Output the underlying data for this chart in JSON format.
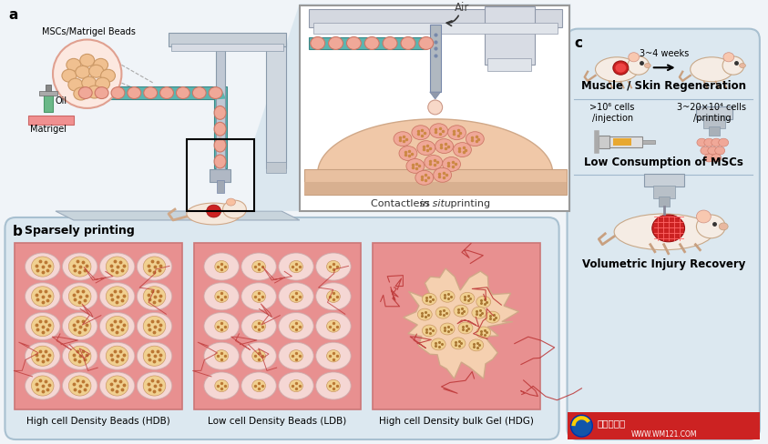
{
  "bg_color": "#f0f4f8",
  "panel_bg_blue": "#dce8f0",
  "panel_border": "#a8c0d0",
  "teal": "#5ab5b0",
  "bead_fill": "#f0a898",
  "bead_edge": "#cc7766",
  "bead_inner": "#f0d090",
  "pink_bg": "#e88888",
  "dark_red": "#cc3333",
  "gray_frame": "#c8d0d8",
  "gray_mid": "#a0a8b0",
  "gray_light": "#d8dce4",
  "white": "#ffffff",
  "skin_color": "#f0c8a8",
  "skin_edge": "#d8a888",
  "mouse_body": "#f0e0d0",
  "mouse_edge": "#c8a888",
  "mouse_ear": "#f8c8b0",
  "label_a": "a",
  "label_b": "b",
  "label_c": "c",
  "text_MSCs": "MSCs/Matrigel Beads",
  "text_Oil": "Oil",
  "text_Matrigel": "Matrigel",
  "text_Air": "Air",
  "text_contactless": "Contactless ",
  "text_in_situ": "in situ",
  "text_printing_label": " printing",
  "text_sparsely": "Sparsely printing",
  "caption_HDB": "High cell Density Beads (HDB)",
  "caption_LDB": "Low cell Density Beads (LDB)",
  "caption_HDG": "High cell Density bulk Gel (HDG)",
  "text_muscle": "Muscle / Skin Regeneration",
  "text_34weeks": "3~4 weeks",
  "text_low_consumption": "Low Consumption of MSCs",
  "text_volumetric": "Volumetric Injury Recovery",
  "text_injection": ">10⁶ cells\n/injection",
  "text_printing_cells": "3~20×10⁴ cells\n/printing",
  "watermark_text": "试管婴儿网",
  "watermark_url": "WWW.WM121.COM",
  "watermark_bg": "#cc2222"
}
